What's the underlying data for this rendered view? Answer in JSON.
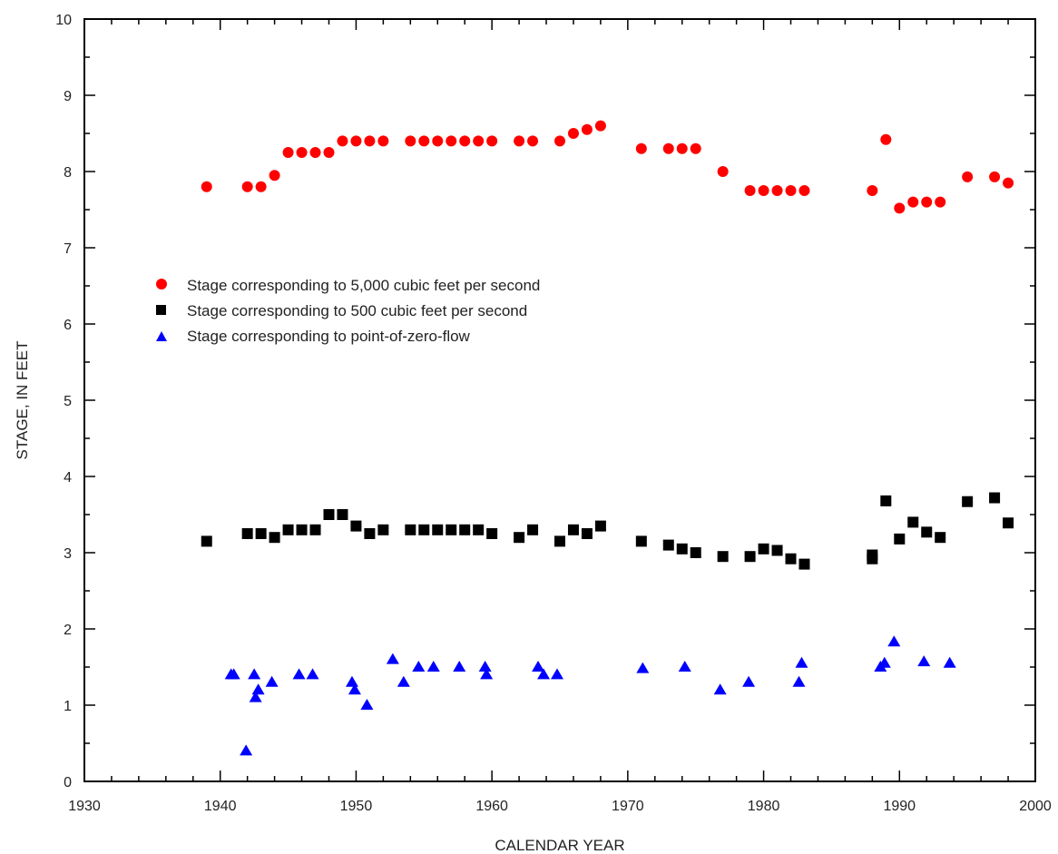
{
  "chart_data": {
    "type": "scatter",
    "xlabel": "CALENDAR YEAR",
    "ylabel": "STAGE, IN FEET",
    "xlim": [
      1930,
      2000
    ],
    "ylim": [
      0,
      10
    ],
    "xticks": [
      1930,
      1940,
      1950,
      1960,
      1970,
      1980,
      1990,
      2000
    ],
    "yticks": [
      0,
      1,
      2,
      3,
      4,
      5,
      6,
      7,
      8,
      9,
      10
    ],
    "x_minor_step": 2,
    "y_minor_step": 0.5,
    "grid": false,
    "legend_position": "upper-left",
    "series": [
      {
        "name": "Stage corresponding to 5,000 cubic feet per second",
        "marker": "circle",
        "color": "#ff0000",
        "points": [
          [
            1939,
            7.8
          ],
          [
            1942,
            7.8
          ],
          [
            1943,
            7.8
          ],
          [
            1944,
            7.95
          ],
          [
            1945,
            8.25
          ],
          [
            1946,
            8.25
          ],
          [
            1947,
            8.25
          ],
          [
            1948,
            8.25
          ],
          [
            1949,
            8.4
          ],
          [
            1950,
            8.4
          ],
          [
            1951,
            8.4
          ],
          [
            1952,
            8.4
          ],
          [
            1954,
            8.4
          ],
          [
            1955,
            8.4
          ],
          [
            1956,
            8.4
          ],
          [
            1957,
            8.4
          ],
          [
            1958,
            8.4
          ],
          [
            1959,
            8.4
          ],
          [
            1960,
            8.4
          ],
          [
            1962,
            8.4
          ],
          [
            1963,
            8.4
          ],
          [
            1965,
            8.4
          ],
          [
            1966,
            8.5
          ],
          [
            1967,
            8.55
          ],
          [
            1968,
            8.6
          ],
          [
            1971,
            8.3
          ],
          [
            1973,
            8.3
          ],
          [
            1974,
            8.3
          ],
          [
            1975,
            8.3
          ],
          [
            1977,
            8.0
          ],
          [
            1979,
            7.75
          ],
          [
            1980,
            7.75
          ],
          [
            1981,
            7.75
          ],
          [
            1982,
            7.75
          ],
          [
            1983,
            7.75
          ],
          [
            1988,
            7.75
          ],
          [
            1989,
            8.42
          ],
          [
            1990,
            7.52
          ],
          [
            1991,
            7.6
          ],
          [
            1992,
            7.6
          ],
          [
            1993,
            7.6
          ],
          [
            1995,
            7.93
          ],
          [
            1997,
            7.93
          ],
          [
            1998,
            7.85
          ]
        ]
      },
      {
        "name": "Stage corresponding to 500 cubic feet per second",
        "marker": "square",
        "color": "#000000",
        "points": [
          [
            1939,
            3.15
          ],
          [
            1942,
            3.25
          ],
          [
            1943,
            3.25
          ],
          [
            1944,
            3.2
          ],
          [
            1945,
            3.3
          ],
          [
            1946,
            3.3
          ],
          [
            1947,
            3.3
          ],
          [
            1948,
            3.5
          ],
          [
            1949,
            3.5
          ],
          [
            1950,
            3.35
          ],
          [
            1951,
            3.25
          ],
          [
            1952,
            3.3
          ],
          [
            1954,
            3.3
          ],
          [
            1955,
            3.3
          ],
          [
            1956,
            3.3
          ],
          [
            1957,
            3.3
          ],
          [
            1958,
            3.3
          ],
          [
            1959,
            3.3
          ],
          [
            1960,
            3.25
          ],
          [
            1962,
            3.2
          ],
          [
            1963,
            3.3
          ],
          [
            1965,
            3.15
          ],
          [
            1966,
            3.3
          ],
          [
            1967,
            3.25
          ],
          [
            1968,
            3.35
          ],
          [
            1971,
            3.15
          ],
          [
            1973,
            3.1
          ],
          [
            1974,
            3.05
          ],
          [
            1975,
            3.0
          ],
          [
            1977,
            2.95
          ],
          [
            1979,
            2.95
          ],
          [
            1980,
            3.05
          ],
          [
            1981,
            3.03
          ],
          [
            1982,
            2.92
          ],
          [
            1983,
            2.85
          ],
          [
            1988,
            2.92
          ],
          [
            1988,
            2.97
          ],
          [
            1989,
            3.68
          ],
          [
            1990,
            3.18
          ],
          [
            1991,
            3.4
          ],
          [
            1992,
            3.27
          ],
          [
            1993,
            3.2
          ],
          [
            1995,
            3.67
          ],
          [
            1997,
            3.72
          ],
          [
            1998,
            3.39
          ]
        ]
      },
      {
        "name": "Stage corresponding to point-of-zero-flow",
        "marker": "triangle",
        "color": "#0000ff",
        "points": [
          [
            1940.8,
            1.4
          ],
          [
            1941,
            1.4
          ],
          [
            1941.9,
            0.4
          ],
          [
            1942.5,
            1.4
          ],
          [
            1942.6,
            1.1
          ],
          [
            1942.8,
            1.2
          ],
          [
            1943.8,
            1.3
          ],
          [
            1945.8,
            1.4
          ],
          [
            1946.8,
            1.4
          ],
          [
            1949.7,
            1.3
          ],
          [
            1949.9,
            1.2
          ],
          [
            1950.8,
            1.0
          ],
          [
            1952.7,
            1.6
          ],
          [
            1953.5,
            1.3
          ],
          [
            1954.6,
            1.5
          ],
          [
            1955.7,
            1.5
          ],
          [
            1957.6,
            1.5
          ],
          [
            1959.5,
            1.5
          ],
          [
            1959.6,
            1.4
          ],
          [
            1963.4,
            1.5
          ],
          [
            1963.8,
            1.4
          ],
          [
            1964.8,
            1.4
          ],
          [
            1971.1,
            1.48
          ],
          [
            1974.2,
            1.5
          ],
          [
            1976.8,
            1.2
          ],
          [
            1978.9,
            1.3
          ],
          [
            1982.6,
            1.3
          ],
          [
            1982.8,
            1.55
          ],
          [
            1988.6,
            1.5
          ],
          [
            1988.9,
            1.55
          ],
          [
            1989.6,
            1.83
          ],
          [
            1991.8,
            1.57
          ],
          [
            1993.7,
            1.55
          ]
        ]
      }
    ]
  }
}
